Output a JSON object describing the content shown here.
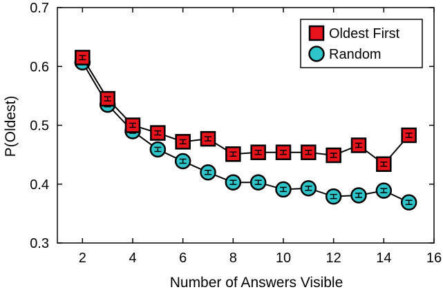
{
  "chart_data": {
    "type": "line",
    "title": "",
    "xlabel": "Number of Answers Visible",
    "ylabel": "P(Oldest)",
    "xlim": [
      1,
      16
    ],
    "ylim": [
      0.3,
      0.7
    ],
    "xticks": [
      2,
      4,
      6,
      8,
      10,
      12,
      14,
      16
    ],
    "yticks": [
      0.3,
      0.4,
      0.5,
      0.6,
      0.7
    ],
    "xtick_labels": [
      "2",
      "4",
      "6",
      "8",
      "10",
      "12",
      "14",
      "16"
    ],
    "ytick_labels": [
      "0.3",
      "0.4",
      "0.5",
      "0.6",
      "0.7"
    ],
    "grid": false,
    "legend_position": "top-right",
    "x": [
      2,
      3,
      4,
      5,
      6,
      7,
      8,
      9,
      10,
      11,
      12,
      13,
      14,
      15
    ],
    "series": [
      {
        "name": "Oldest First",
        "marker": "square",
        "color": "#e8141c",
        "values": [
          0.615,
          0.545,
          0.5,
          0.487,
          0.472,
          0.477,
          0.451,
          0.454,
          0.454,
          0.454,
          0.449,
          0.466,
          0.434,
          0.483
        ]
      },
      {
        "name": "Random",
        "marker": "circle",
        "color": "#2ec4c9",
        "values": [
          0.607,
          0.535,
          0.49,
          0.459,
          0.439,
          0.42,
          0.403,
          0.403,
          0.391,
          0.393,
          0.379,
          0.381,
          0.389,
          0.369
        ]
      }
    ]
  }
}
